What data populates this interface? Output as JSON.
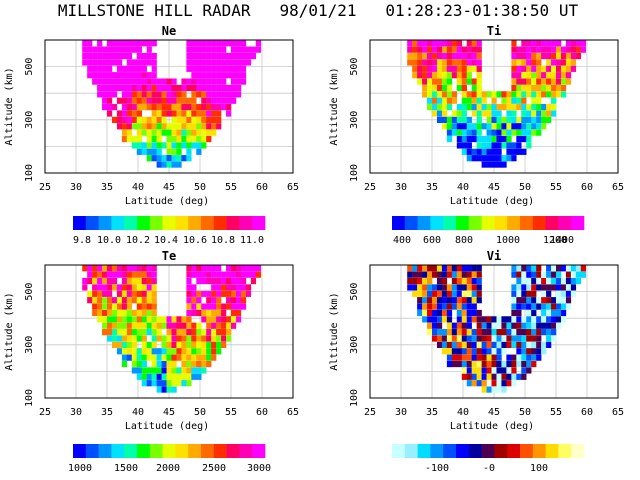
{
  "figure_title": "MILLSTONE HILL RADAR   98/01/21   01:28:23-01:38:50 UT",
  "chart_data": [
    {
      "type": "heatmap",
      "title": "Ne",
      "xlabel": "Latitude (deg)",
      "ylabel": "Altitude (km)",
      "xlim": [
        25,
        65
      ],
      "ylim": [
        100,
        600
      ],
      "xticks": [
        "25",
        "30",
        "35",
        "40",
        "45",
        "50",
        "55",
        "60",
        "65"
      ],
      "yticks": [
        "100",
        "300",
        "500"
      ],
      "colorbar_labels": [
        "9.8",
        "10.0",
        "10.2",
        "10.4",
        "10.6",
        "10.8",
        "11.0"
      ],
      "colorbar_colors": [
        "#0000ff",
        "#0050ff",
        "#0096ff",
        "#00e1ff",
        "#00ffaa",
        "#00ff00",
        "#78ff00",
        "#e6ff00",
        "#ffe100",
        "#ffaa00",
        "#ff6900",
        "#ff2d00",
        "#ff0064",
        "#ff00b4",
        "#ff00ff"
      ]
    },
    {
      "type": "heatmap",
      "title": "Ti",
      "xlabel": "Latitude (deg)",
      "ylabel": "Altitude (km)",
      "xlim": [
        25,
        65
      ],
      "ylim": [
        100,
        600
      ],
      "xticks": [
        "25",
        "30",
        "35",
        "40",
        "45",
        "50",
        "55",
        "60",
        "65"
      ],
      "yticks": [
        "100",
        "300",
        "500"
      ],
      "colorbar_labels": [
        "400",
        "600",
        "800",
        "1000",
        "1200",
        "1400"
      ],
      "colorbar_colors": [
        "#0000ff",
        "#0050ff",
        "#0096ff",
        "#00e1ff",
        "#00ffaa",
        "#00ff00",
        "#78ff00",
        "#e6ff00",
        "#ffe100",
        "#ffaa00",
        "#ff6900",
        "#ff2d00",
        "#ff0064",
        "#ff00b4",
        "#ff00ff"
      ]
    },
    {
      "type": "heatmap",
      "title": "Te",
      "xlabel": "Latitude (deg)",
      "ylabel": "Altitude (km)",
      "xlim": [
        25,
        65
      ],
      "ylim": [
        100,
        600
      ],
      "xticks": [
        "25",
        "30",
        "35",
        "40",
        "45",
        "50",
        "55",
        "60",
        "65"
      ],
      "yticks": [
        "100",
        "300",
        "500"
      ],
      "colorbar_labels": [
        "1000",
        "1500",
        "2000",
        "2500",
        "3000"
      ],
      "colorbar_colors": [
        "#0000ff",
        "#0050ff",
        "#0096ff",
        "#00e1ff",
        "#00ffaa",
        "#00ff00",
        "#78ff00",
        "#e6ff00",
        "#ffe100",
        "#ffaa00",
        "#ff6900",
        "#ff2d00",
        "#ff0064",
        "#ff00b4",
        "#ff00ff"
      ]
    },
    {
      "type": "heatmap",
      "title": "Vi",
      "xlabel": "Latitude (deg)",
      "ylabel": "Altitude (km)",
      "xlim": [
        25,
        65
      ],
      "ylim": [
        100,
        600
      ],
      "xticks": [
        "25",
        "30",
        "35",
        "40",
        "45",
        "50",
        "55",
        "60",
        "65"
      ],
      "yticks": [
        "100",
        "300",
        "500"
      ],
      "colorbar_labels": [
        "-100",
        "-0",
        "100"
      ],
      "colorbar_colors": [
        "#c8ffff",
        "#96f0ff",
        "#00dcff",
        "#0096ff",
        "#0050ff",
        "#0000ff",
        "#0000a0",
        "#500050",
        "#a00000",
        "#dc0000",
        "#ff5000",
        "#ff9600",
        "#ffdc00",
        "#ffff64",
        "#ffffc8"
      ]
    }
  ]
}
